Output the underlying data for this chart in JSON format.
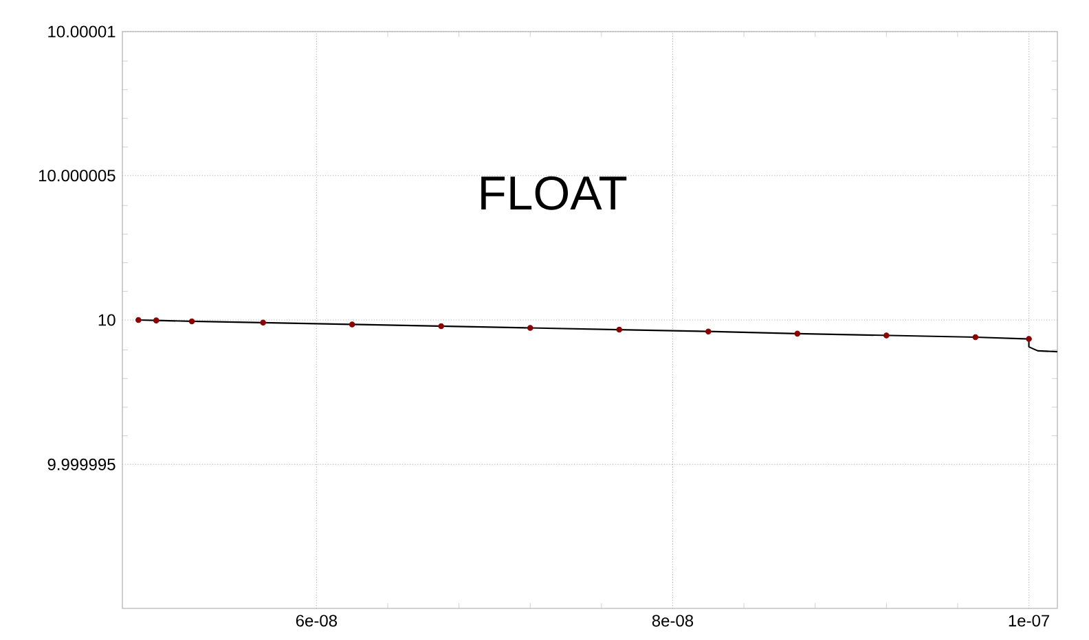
{
  "chart_data": {
    "type": "line",
    "annotations": [
      "FLOAT"
    ],
    "xlim": [
      4.91e-08,
      1.016e-07
    ],
    "ylim": [
      9.99999,
      10.00001
    ],
    "xticks": [
      {
        "value": 6e-08,
        "label": "6e-08"
      },
      {
        "value": 8e-08,
        "label": "8e-08"
      },
      {
        "value": 1e-07,
        "label": "1e-07"
      }
    ],
    "yticks": [
      9.999995,
      10,
      10.000005,
      10.00001
    ],
    "grid": true,
    "series": [
      {
        "color": "#000000",
        "marker": "none",
        "x": [
          5e-08,
          5.1e-08,
          5.3e-08,
          5.7e-08,
          6.2e-08,
          6.7e-08,
          7.2e-08,
          7.7e-08,
          8.2e-08,
          8.7e-08,
          9.2e-08,
          9.7e-08,
          1e-07,
          1e-07,
          1.005e-07,
          1.016e-07
        ],
        "values": [
          10.0,
          9.99999999,
          9.99999996,
          9.99999991,
          9.99999985,
          9.99999979,
          9.99999972,
          9.99999966,
          9.9999996,
          9.99999953,
          9.99999947,
          9.9999994,
          9.99999935,
          9.99999907,
          9.99999893,
          9.9999989
        ]
      },
      {
        "type": "scatter",
        "color": "#8b0000",
        "marker": "circle",
        "x": [
          5e-08,
          5.1e-08,
          5.3e-08,
          5.7e-08,
          6.2e-08,
          6.7e-08,
          7.2e-08,
          7.7e-08,
          8.2e-08,
          8.7e-08,
          9.2e-08,
          9.7e-08,
          1e-07
        ],
        "values": [
          10.0,
          9.99999999,
          9.99999996,
          9.99999991,
          9.99999985,
          9.99999979,
          9.99999972,
          9.99999966,
          9.9999996,
          9.99999953,
          9.99999947,
          9.9999994,
          9.99999935
        ]
      }
    ]
  }
}
